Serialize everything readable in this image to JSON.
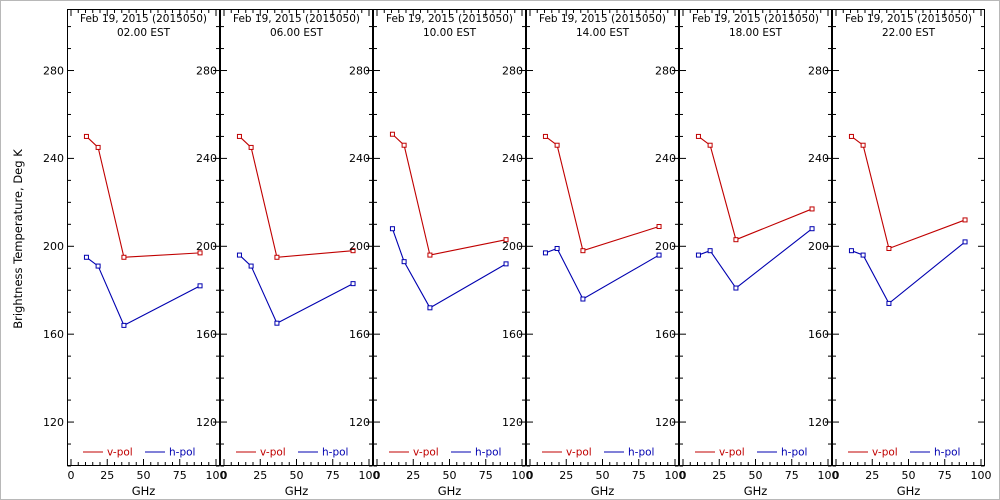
{
  "figure": {
    "ylabel": "Brightness Temperature, Deg K",
    "xlabel": "GHz",
    "axis_color": "#000000",
    "background": "#ffffff"
  },
  "chart_data": [
    {
      "type": "line",
      "title": "Feb 19, 2015 (2015050)",
      "subtitle": "02.00 EST",
      "xlabel": "GHz",
      "ylabel": "Brightness Temperature, Deg K",
      "x": [
        10.65,
        18.7,
        36.5,
        89.0
      ],
      "xlim": [
        0,
        100
      ],
      "ylim": [
        100,
        308
      ],
      "xticks": [
        0,
        25,
        50,
        75,
        100
      ],
      "yticks": [
        120,
        160,
        200,
        240,
        280
      ],
      "legend_position": "bottom-inside",
      "grid": false,
      "series": [
        {
          "name": "v-pol",
          "color": "#c00000",
          "values": [
            250,
            245,
            195,
            197
          ]
        },
        {
          "name": "h-pol",
          "color": "#0000b0",
          "values": [
            195,
            191,
            164,
            182
          ]
        }
      ]
    },
    {
      "type": "line",
      "title": "Feb 19, 2015 (2015050)",
      "subtitle": "06.00 EST",
      "xlabel": "GHz",
      "x": [
        10.65,
        18.7,
        36.5,
        89.0
      ],
      "xlim": [
        0,
        100
      ],
      "ylim": [
        100,
        308
      ],
      "xticks": [
        0,
        25,
        50,
        75,
        100
      ],
      "yticks": [
        120,
        160,
        200,
        240,
        280
      ],
      "legend_position": "bottom-inside",
      "grid": false,
      "series": [
        {
          "name": "v-pol",
          "color": "#c00000",
          "values": [
            250,
            245,
            195,
            198
          ]
        },
        {
          "name": "h-pol",
          "color": "#0000b0",
          "values": [
            196,
            191,
            165,
            183
          ]
        }
      ]
    },
    {
      "type": "line",
      "title": "Feb 19, 2015 (2015050)",
      "subtitle": "10.00 EST",
      "xlabel": "GHz",
      "x": [
        10.65,
        18.7,
        36.5,
        89.0
      ],
      "xlim": [
        0,
        100
      ],
      "ylim": [
        100,
        308
      ],
      "xticks": [
        0,
        25,
        50,
        75,
        100
      ],
      "yticks": [
        120,
        160,
        200,
        240,
        280
      ],
      "legend_position": "bottom-inside",
      "grid": false,
      "series": [
        {
          "name": "v-pol",
          "color": "#c00000",
          "values": [
            251,
            246,
            196,
            203
          ]
        },
        {
          "name": "h-pol",
          "color": "#0000b0",
          "values": [
            208,
            193,
            172,
            192
          ]
        }
      ]
    },
    {
      "type": "line",
      "title": "Feb 19, 2015 (2015050)",
      "subtitle": "14.00 EST",
      "xlabel": "GHz",
      "x": [
        10.65,
        18.7,
        36.5,
        89.0
      ],
      "xlim": [
        0,
        100
      ],
      "ylim": [
        100,
        308
      ],
      "xticks": [
        0,
        25,
        50,
        75,
        100
      ],
      "yticks": [
        120,
        160,
        200,
        240,
        280
      ],
      "legend_position": "bottom-inside",
      "grid": false,
      "series": [
        {
          "name": "v-pol",
          "color": "#c00000",
          "values": [
            250,
            246,
            198,
            209
          ]
        },
        {
          "name": "h-pol",
          "color": "#0000b0",
          "values": [
            197,
            199,
            176,
            196
          ]
        }
      ]
    },
    {
      "type": "line",
      "title": "Feb 19, 2015 (2015050)",
      "subtitle": "18.00 EST",
      "xlabel": "GHz",
      "x": [
        10.65,
        18.7,
        36.5,
        89.0
      ],
      "xlim": [
        0,
        100
      ],
      "ylim": [
        100,
        308
      ],
      "xticks": [
        0,
        25,
        50,
        75,
        100
      ],
      "yticks": [
        120,
        160,
        200,
        240,
        280
      ],
      "legend_position": "bottom-inside",
      "grid": false,
      "series": [
        {
          "name": "v-pol",
          "color": "#c00000",
          "values": [
            250,
            246,
            203,
            217
          ]
        },
        {
          "name": "h-pol",
          "color": "#0000b0",
          "values": [
            196,
            198,
            181,
            208
          ]
        }
      ]
    },
    {
      "type": "line",
      "title": "Feb 19, 2015 (2015050)",
      "subtitle": "22.00 EST",
      "xlabel": "GHz",
      "x": [
        10.65,
        18.7,
        36.5,
        89.0
      ],
      "xlim": [
        0,
        100
      ],
      "ylim": [
        100,
        308
      ],
      "xticks": [
        0,
        25,
        50,
        75,
        100
      ],
      "yticks": [
        120,
        160,
        200,
        240,
        280
      ],
      "legend_position": "bottom-inside",
      "grid": false,
      "series": [
        {
          "name": "v-pol",
          "color": "#c00000",
          "values": [
            250,
            246,
            199,
            212
          ]
        },
        {
          "name": "h-pol",
          "color": "#0000b0",
          "values": [
            198,
            196,
            174,
            202
          ]
        }
      ]
    }
  ]
}
